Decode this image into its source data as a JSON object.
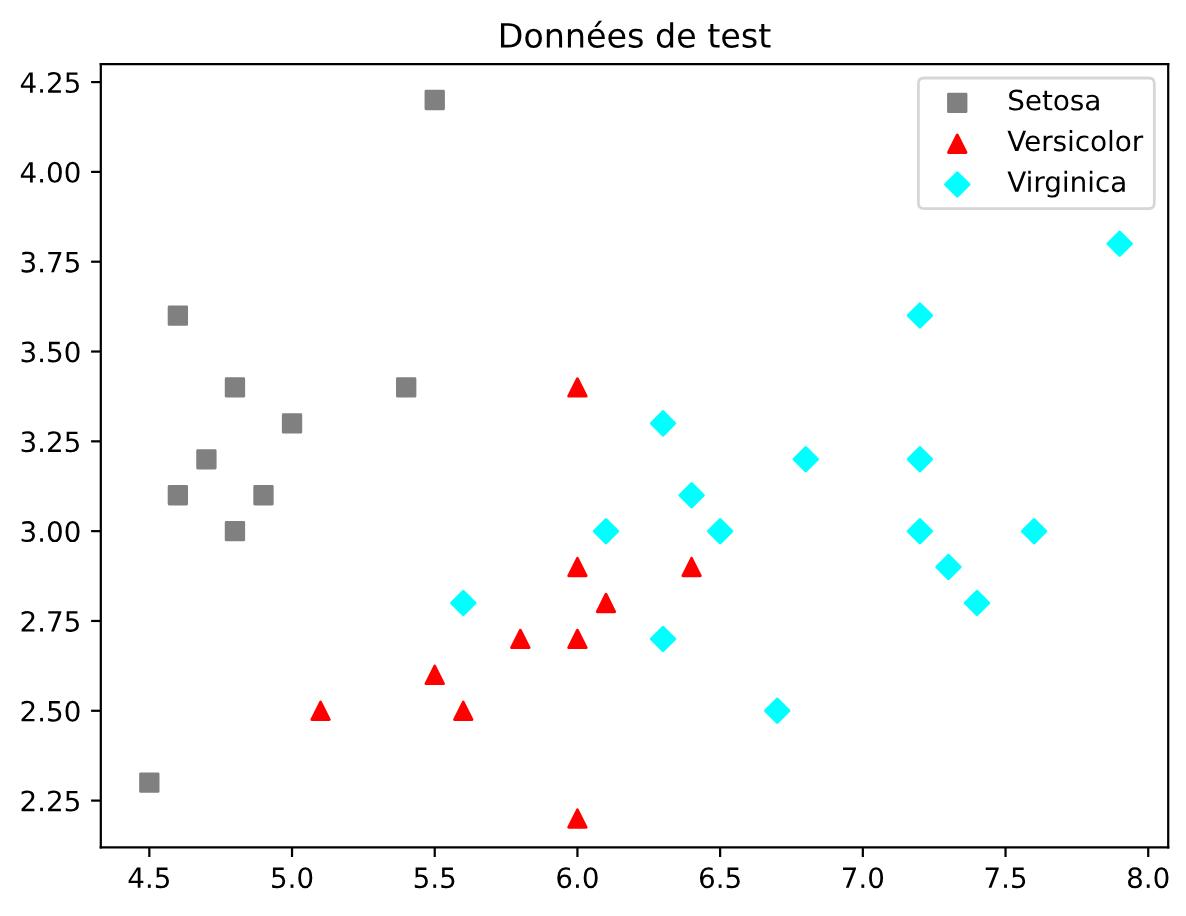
{
  "chart_data": {
    "type": "scatter",
    "title": "Données de test",
    "xlim": [
      4.33,
      8.07
    ],
    "ylim": [
      2.12,
      4.3
    ],
    "xticks": [
      4.5,
      {
        "value": 5,
        "label": "5.0"
      },
      5.5,
      {
        "value": 6,
        "label": "6.0"
      },
      6.5,
      {
        "value": 7,
        "label": "7.0"
      },
      7.5,
      {
        "value": 8,
        "label": "8.0"
      }
    ],
    "yticks": [
      2.25,
      {
        "value": 2.5,
        "label": "2.50"
      },
      2.75,
      {
        "value": 3,
        "label": "3.00"
      },
      3.25,
      {
        "value": 3.5,
        "label": "3.50"
      },
      3.75,
      {
        "value": 4,
        "label": "4.00"
      },
      4.25
    ],
    "legend": "top right",
    "grid": false,
    "series": [
      {
        "name": "Setosa",
        "color": "#808080",
        "marker": "square",
        "x": [
          5.5,
          4.6,
          4.8,
          4.7,
          5.0,
          4.6,
          4.9,
          4.8,
          5.4,
          4.5
        ],
        "values": [
          4.2,
          3.6,
          3.4,
          3.2,
          3.3,
          3.1,
          3.1,
          3.0,
          3.4,
          2.3
        ]
      },
      {
        "name": "Versicolor",
        "color": "#ff0000",
        "marker": "triangle",
        "x": [
          6.0,
          6.0,
          6.1,
          6.4,
          5.8,
          6.0,
          5.5,
          5.6,
          5.1,
          6.0
        ],
        "values": [
          3.4,
          2.9,
          2.8,
          2.9,
          2.7,
          2.7,
          2.6,
          2.5,
          2.5,
          2.2
        ]
      },
      {
        "name": "Virginica",
        "color": "#00ffff",
        "marker": "diamond",
        "x": [
          7.9,
          7.2,
          6.3,
          6.8,
          7.2,
          6.4,
          6.1,
          6.5,
          7.2,
          7.6,
          7.3,
          7.4,
          6.3,
          5.6,
          6.7
        ],
        "values": [
          3.8,
          3.6,
          3.3,
          3.2,
          3.2,
          3.1,
          3.0,
          3.0,
          3.0,
          3.0,
          2.9,
          2.8,
          2.7,
          2.8,
          2.5
        ]
      }
    ]
  }
}
